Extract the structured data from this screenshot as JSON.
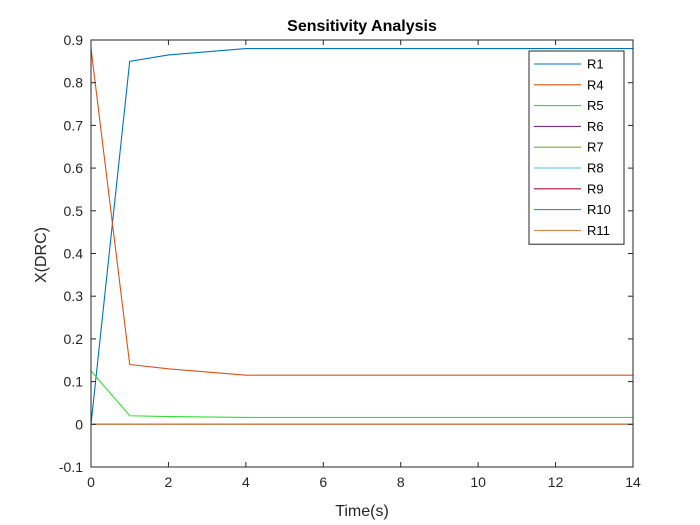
{
  "chart_data": {
    "type": "line",
    "title": "Sensitivity Analysis",
    "xlabel": "Time(s)",
    "ylabel": "X(DRC)",
    "xlim": [
      0,
      14
    ],
    "ylim": [
      -0.1,
      0.9
    ],
    "xticks": [
      0,
      2,
      4,
      6,
      8,
      10,
      12,
      14
    ],
    "yticks": [
      -0.1,
      0,
      0.1,
      0.2,
      0.3,
      0.4,
      0.5,
      0.6,
      0.7,
      0.8,
      0.9
    ],
    "ytick_labels": [
      "-0.1",
      "0",
      "0.1",
      "0.2",
      "0.3",
      "0.4",
      "0.5",
      "0.6",
      "0.7",
      "0.8",
      "0.9"
    ],
    "grid": false,
    "legend_position": "top-right",
    "x": [
      0,
      1,
      2,
      4,
      14
    ],
    "series": [
      {
        "name": "R1",
        "color": "#0072BD",
        "values": [
          0,
          0.85,
          0.865,
          0.88,
          0.88
        ]
      },
      {
        "name": "R4",
        "color": "#D95319",
        "values": [
          0.88,
          0.14,
          0.13,
          0.115,
          0.115
        ]
      },
      {
        "name": "R5",
        "color": "#33DD33",
        "values": [
          0.125,
          0.02,
          0.018,
          0.016,
          0.016
        ]
      },
      {
        "name": "R6",
        "color": "#7E2F8E",
        "values": [
          0,
          0,
          0,
          0,
          0
        ]
      },
      {
        "name": "R7",
        "color": "#77AC30",
        "values": [
          0,
          0,
          0,
          0,
          0
        ]
      },
      {
        "name": "R8",
        "color": "#4DBEEE",
        "values": [
          0,
          0,
          0,
          0,
          0
        ]
      },
      {
        "name": "R9",
        "color": "#A2142F",
        "values": [
          0,
          0,
          0,
          0,
          0
        ]
      },
      {
        "name": "R10",
        "color": "#3C8FB0",
        "values": [
          0,
          0,
          0,
          0,
          0
        ]
      },
      {
        "name": "R11",
        "color": "#D9894C",
        "values": [
          0,
          0,
          0,
          0,
          0
        ]
      }
    ]
  }
}
